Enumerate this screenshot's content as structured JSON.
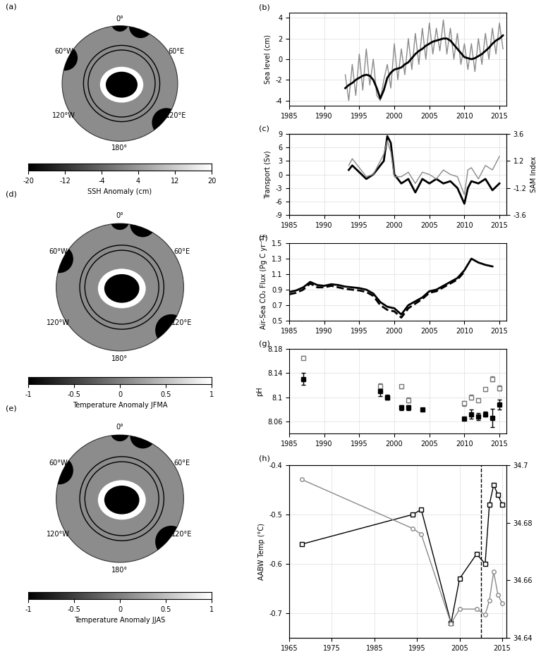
{
  "chart_data": [
    {
      "type": "map",
      "panel": "(a)",
      "lon_ticks": [
        {
          "value": 0,
          "label": "0°"
        },
        {
          "value": 60,
          "label": "60°E"
        },
        {
          "value": 120,
          "label": "120°E"
        },
        {
          "value": 180,
          "label": "180°"
        },
        {
          "value": -120,
          "label": "120°W"
        },
        {
          "value": -60,
          "label": "60°W"
        }
      ],
      "colorbar": {
        "label": "SSH Anomaly (cm)",
        "lim": [
          -20,
          20
        ],
        "ticks": [
          -20,
          -12,
          -4,
          4,
          12,
          20
        ]
      }
    },
    {
      "type": "line",
      "panel": "(b)",
      "y_label": "Sea level (cm)",
      "x": [
        1993.0,
        1993.5,
        1994.0,
        1994.5,
        1995.0,
        1995.5,
        1996.0,
        1996.5,
        1997.0,
        1997.5,
        1998.0,
        1998.5,
        1999.0,
        1999.5,
        2000.0,
        2000.5,
        2001.0,
        2001.5,
        2002.0,
        2002.5,
        2003.0,
        2003.5,
        2004.0,
        2004.5,
        2005.0,
        2005.5,
        2006.0,
        2006.5,
        2007.0,
        2007.5,
        2008.0,
        2008.5,
        2009.0,
        2009.5,
        2010.0,
        2010.5,
        2011.0,
        2011.5,
        2012.0,
        2012.5,
        2013.0,
        2013.5,
        2014.0,
        2014.5,
        2015.0,
        2015.5
      ],
      "xlim": [
        1985,
        2016
      ],
      "xticks": [
        1985,
        1990,
        1995,
        2000,
        2005,
        2010,
        2015
      ],
      "ylim": [
        -4.5,
        4.5
      ],
      "yticks": [
        -4,
        -2,
        0,
        2,
        4
      ],
      "series": [
        {
          "color": "#8a8a8a",
          "line_style": "solid",
          "values": [
            -1.5,
            -4.0,
            -0.5,
            -3.5,
            0.5,
            -3.0,
            1.0,
            -2.5,
            0.0,
            -3.5,
            -4.0,
            -2.0,
            -0.5,
            -2.8,
            1.5,
            -2.0,
            1.0,
            -1.5,
            2.0,
            -1.0,
            2.5,
            -0.5,
            3.0,
            0.0,
            3.5,
            0.5,
            3.0,
            0.8,
            3.8,
            0.5,
            3.0,
            0.0,
            2.5,
            -0.5,
            1.5,
            -1.0,
            1.5,
            -1.2,
            2.0,
            -0.5,
            2.5,
            0.0,
            3.0,
            0.5,
            3.5,
            1.0
          ]
        },
        {
          "color": "#000000",
          "line_style": "solid",
          "values": [
            -2.8,
            -2.5,
            -2.3,
            -2.0,
            -1.8,
            -1.6,
            -1.5,
            -1.6,
            -2.0,
            -2.8,
            -3.8,
            -3.0,
            -1.8,
            -1.3,
            -1.0,
            -0.9,
            -0.8,
            -0.5,
            -0.3,
            0.1,
            0.5,
            0.8,
            1.0,
            1.3,
            1.5,
            1.7,
            1.8,
            1.9,
            2.0,
            2.0,
            1.8,
            1.4,
            1.0,
            0.6,
            0.2,
            0.1,
            0.0,
            0.1,
            0.3,
            0.5,
            0.8,
            1.1,
            1.5,
            1.8,
            2.0,
            2.3
          ]
        }
      ]
    },
    {
      "type": "line",
      "panel": "(c)",
      "y_label": "Transport (Sv)",
      "y2_label": "SAM Index",
      "x": [
        1993.5,
        1994,
        1995,
        1996,
        1997,
        1998.5,
        1999,
        1999.5,
        2000,
        2001,
        2002,
        2003,
        2004,
        2005,
        2006,
        2007,
        2008,
        2009,
        2010,
        2010.5,
        2011,
        2012,
        2013,
        2014,
        2015
      ],
      "xlim": [
        1985,
        2016
      ],
      "xticks": [
        1985,
        1990,
        1995,
        2000,
        2005,
        2010,
        2015
      ],
      "ylim": [
        -9,
        9
      ],
      "yticks": [
        -9,
        -6,
        -3,
        0,
        3,
        6,
        9
      ],
      "y2lim": [
        -3.6,
        3.6
      ],
      "y2ticks": [
        -3.6,
        -1.2,
        1.2,
        3.6
      ],
      "series": [
        {
          "color": "#8a8a8a",
          "line_style": "solid",
          "axis": "y2",
          "values": [
            0.8,
            1.4,
            0.6,
            -0.2,
            0.0,
            1.8,
            3.0,
            2.0,
            -0.2,
            -0.2,
            0.2,
            -0.8,
            0.2,
            0.0,
            -0.4,
            0.4,
            0.0,
            -0.2,
            -1.8,
            0.4,
            0.6,
            -0.4,
            0.8,
            0.4,
            1.6
          ]
        },
        {
          "color": "#000000",
          "line_style": "solid",
          "values": [
            1,
            2,
            0.5,
            -1,
            0,
            3,
            8.5,
            7,
            0,
            -2,
            -1,
            -4,
            -1,
            -2,
            -1,
            -2,
            -1.5,
            -3,
            -6.5,
            -3,
            -1.5,
            -2,
            -1,
            -3.5,
            -2
          ]
        }
      ]
    },
    {
      "type": "map",
      "panel": "(d)",
      "lon_ticks": [
        {
          "value": 0,
          "label": "0°"
        },
        {
          "value": 60,
          "label": "60°E"
        },
        {
          "value": 120,
          "label": "120°E"
        },
        {
          "value": 180,
          "label": "180°"
        },
        {
          "value": -120,
          "label": "120°W"
        },
        {
          "value": -60,
          "label": "60°W"
        }
      ],
      "colorbar": {
        "label": "Temperature Anomaly JFMA",
        "lim": [
          -1,
          1
        ],
        "ticks": [
          -1,
          -0.5,
          0,
          0.5,
          1
        ]
      }
    },
    {
      "type": "map",
      "panel": "(e)",
      "lon_ticks": [
        {
          "value": 0,
          "label": "0°"
        },
        {
          "value": 60,
          "label": "60°E"
        },
        {
          "value": 120,
          "label": "120°E"
        },
        {
          "value": 180,
          "label": "180°"
        },
        {
          "value": -120,
          "label": "120°W"
        },
        {
          "value": -60,
          "label": "60°W"
        }
      ],
      "colorbar": {
        "label": "Temperature Anomaly JJAS",
        "lim": [
          -1,
          1
        ],
        "ticks": [
          -1,
          -0.5,
          0,
          0.5,
          1
        ]
      }
    },
    {
      "type": "line",
      "panel": "(f)",
      "y_label": "Air-Sea CO₂ Flux (Pg C yr⁻¹)",
      "x": [
        1985,
        1986,
        1987,
        1988,
        1989,
        1990,
        1991,
        1992,
        1993,
        1994,
        1995,
        1996,
        1997,
        1998,
        1999,
        2000,
        2001,
        2002,
        2003,
        2004,
        2005,
        2006,
        2007,
        2008,
        2009,
        2010,
        2011,
        2012,
        2013,
        2014
      ],
      "xlim": [
        1985,
        2016
      ],
      "xticks": [
        1985,
        1990,
        1995,
        2000,
        2005,
        2010,
        2015
      ],
      "ylim": [
        0.5,
        1.5
      ],
      "yticks": [
        0.5,
        0.7,
        0.9,
        1.1,
        1.3,
        1.5
      ],
      "series": [
        {
          "color": "#000000",
          "line_style": "solid",
          "values": [
            0.87,
            0.89,
            0.93,
            1.0,
            0.96,
            0.95,
            0.97,
            0.96,
            0.94,
            0.93,
            0.92,
            0.9,
            0.85,
            0.74,
            0.68,
            0.66,
            0.58,
            0.7,
            0.75,
            0.8,
            0.88,
            0.9,
            0.95,
            1.0,
            1.05,
            1.15,
            1.3,
            1.25,
            1.22,
            1.2
          ]
        },
        {
          "color": "#000000",
          "line_style": "dashed",
          "values": [
            0.84,
            0.86,
            0.9,
            0.98,
            0.93,
            0.93,
            0.95,
            0.93,
            0.91,
            0.9,
            0.89,
            0.87,
            0.82,
            0.7,
            0.64,
            0.62,
            0.54,
            0.66,
            0.72,
            0.78,
            0.86,
            0.88,
            0.93,
            0.98,
            1.03,
            1.13,
            null,
            null,
            null,
            null
          ]
        }
      ]
    },
    {
      "type": "scatter",
      "panel": "(g)",
      "y_label": "pH",
      "x": [
        1987,
        1998,
        1999,
        2001,
        2002,
        2004,
        2010,
        2011,
        2012,
        2013,
        2014,
        2015
      ],
      "xlim": [
        1985,
        2016
      ],
      "xticks": [
        1985,
        1990,
        1995,
        2000,
        2005,
        2010,
        2015
      ],
      "ylim": [
        8.04,
        8.18
      ],
      "yticks": [
        8.06,
        8.1,
        8.14,
        8.18
      ],
      "series": [
        {
          "color": "#777777",
          "marker": "hollow_square",
          "values": [
            8.165,
            8.118,
            8.1,
            8.118,
            8.095,
            null,
            8.09,
            8.1,
            8.095,
            8.113,
            8.13,
            8.115
          ],
          "errors": [
            0.003,
            0.005,
            0.003,
            0.003,
            0.004,
            null,
            0.004,
            0.004,
            0.003,
            0.003,
            0.004,
            0.004
          ]
        },
        {
          "color": "#000000",
          "marker": "square",
          "values": [
            8.13,
            8.11,
            8.1,
            8.083,
            8.083,
            8.08,
            8.064,
            8.072,
            8.068,
            8.072,
            8.066,
            8.088
          ],
          "errors": [
            0.01,
            0.008,
            0.004,
            0.004,
            0.004,
            0.002,
            0.002,
            0.008,
            0.006,
            0.004,
            0.015,
            0.008
          ]
        }
      ]
    },
    {
      "type": "line",
      "panel": "(h)",
      "y_label": "AABW Temp (°C)",
      "x": [
        1968,
        1994,
        1996,
        2003,
        2005,
        2009,
        2011,
        2012,
        2013,
        2014,
        2015
      ],
      "xlim": [
        1965,
        2016
      ],
      "xticks": [
        1965,
        1975,
        1985,
        1995,
        2005,
        2015
      ],
      "ylim": [
        -0.75,
        -0.4
      ],
      "yticks": [
        -0.7,
        -0.6,
        -0.5,
        -0.4
      ],
      "y2lim": [
        34.64,
        34.7
      ],
      "y2ticks": [
        34.64,
        34.66,
        34.68,
        34.7
      ],
      "vertical_line": 2010,
      "series": [
        {
          "color": "#8a8a8a",
          "line_style": "solid",
          "marker": "hollow_circle",
          "axis": "y2",
          "values": [
            34.695,
            34.678,
            34.676,
            34.645,
            34.65,
            34.65,
            34.648,
            34.653,
            34.663,
            34.655,
            34.652
          ]
        },
        {
          "color": "#000000",
          "line_style": "solid",
          "marker": "hollow_square",
          "values": [
            -0.56,
            -0.5,
            -0.49,
            -0.72,
            -0.63,
            -0.58,
            -0.6,
            -0.48,
            -0.44,
            -0.46,
            -0.48
          ]
        }
      ]
    }
  ]
}
